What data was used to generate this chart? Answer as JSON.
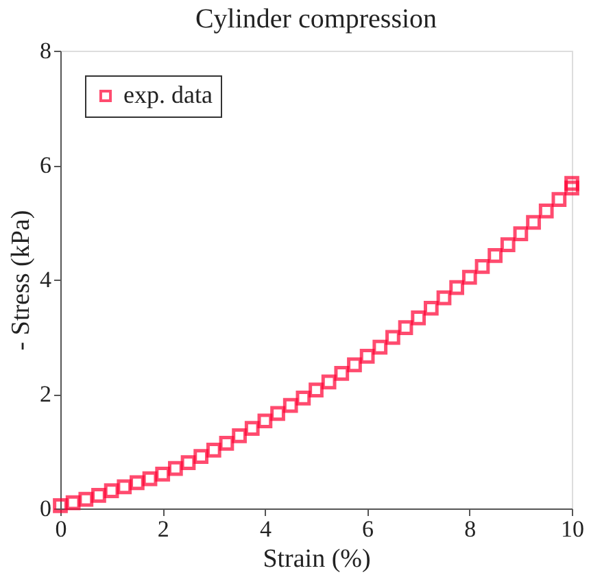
{
  "chart_data": {
    "type": "scatter",
    "title": "Cylinder compression",
    "xlabel": "Strain (%)",
    "ylabel": "- Stress (kPa)",
    "x": [
      0,
      0.25,
      0.5,
      0.75,
      1,
      1.25,
      1.5,
      1.75,
      2,
      2.25,
      2.5,
      2.75,
      3,
      3.25,
      3.5,
      3.75,
      4,
      4.25,
      4.5,
      4.75,
      5,
      5.25,
      5.5,
      5.75,
      6,
      6.25,
      6.5,
      6.75,
      7,
      7.25,
      7.5,
      7.75,
      8,
      8.25,
      8.5,
      8.75,
      9,
      9.25,
      9.5,
      9.75,
      10,
      10
    ],
    "series": [
      {
        "name": "exp. data",
        "color": "#ff0033",
        "values": [
          0.05,
          0.1,
          0.16,
          0.23,
          0.31,
          0.38,
          0.45,
          0.52,
          0.6,
          0.7,
          0.8,
          0.91,
          1.02,
          1.14,
          1.27,
          1.4,
          1.53,
          1.66,
          1.8,
          1.93,
          2.07,
          2.21,
          2.36,
          2.51,
          2.66,
          2.82,
          2.99,
          3.16,
          3.33,
          3.5,
          3.68,
          3.86,
          4.04,
          4.23,
          4.42,
          4.61,
          4.8,
          5.0,
          5.2,
          5.4,
          5.6,
          5.68
        ]
      }
    ],
    "xlim": [
      0,
      10
    ],
    "xticks": [
      0,
      2,
      4,
      6,
      8,
      10
    ],
    "ylim": [
      0,
      8
    ],
    "yticks": [
      0,
      2,
      4,
      6,
      8
    ],
    "marker": "square",
    "legend": "top left",
    "grid": false
  }
}
